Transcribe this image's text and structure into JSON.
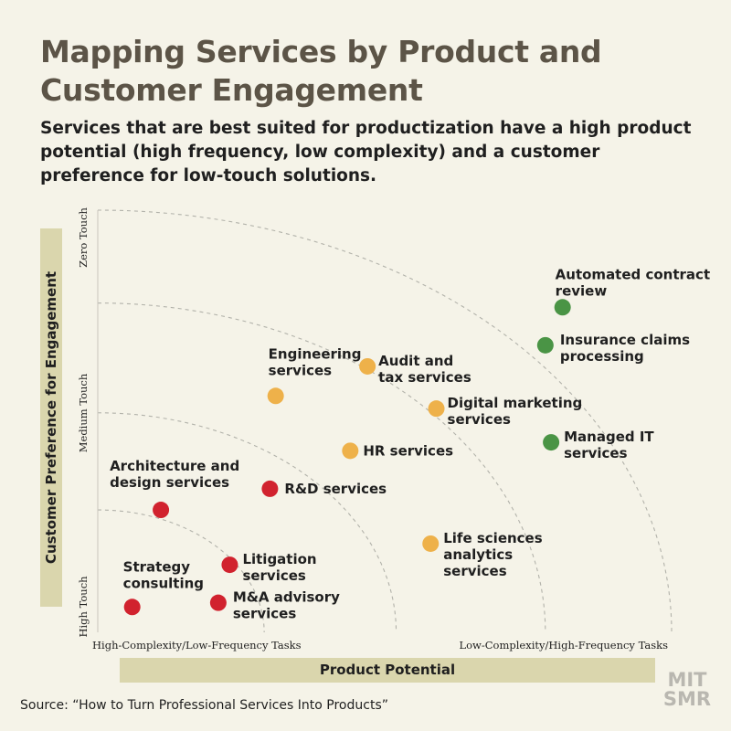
{
  "title": "Mapping Services by Product and Customer Engagement",
  "subtitle": "Services that are best suited for productization have a high product potential (high frequency, low complexity) and a customer preference for low-touch solutions.",
  "source": "Source: “How to Turn Professional Services Into Products”",
  "logo": {
    "line1": "MIT",
    "line2": "SMR"
  },
  "colors": {
    "background": "#f5f3e8",
    "label_bar": "#dad6ad",
    "title": "#5c5447",
    "red": "#d1222e",
    "yellow": "#eeb14a",
    "green": "#4a9445",
    "arc": "#b2b2aa"
  },
  "chart_data": {
    "type": "scatter",
    "title": "Mapping Services by Product and Customer Engagement",
    "xlabel": "Product Potential",
    "ylabel": "Customer Preference for Engagement",
    "x_ticks": [
      "High-Complexity/Low-Frequency Tasks",
      "Low-Complexity/High-Frequency Tasks"
    ],
    "y_ticks": [
      "High Touch",
      "Medium Touch",
      "Zero Touch"
    ],
    "xlim": [
      0,
      100
    ],
    "ylim": [
      0,
      100
    ],
    "grid": "concentric quarter-circle arcs",
    "arc_radii": [
      29,
      52,
      78,
      100
    ],
    "series": [
      {
        "color": "red",
        "points": [
          {
            "label": "Strategy consulting",
            "x": 6,
            "y": 6
          },
          {
            "label": "M&A advisory services",
            "x": 21,
            "y": 7
          },
          {
            "label": "Litigation services",
            "x": 23,
            "y": 16
          },
          {
            "label": "Architecture and design services",
            "x": 11,
            "y": 29
          },
          {
            "label": "R&D services",
            "x": 30,
            "y": 34
          }
        ]
      },
      {
        "color": "yellow",
        "points": [
          {
            "label": "Engineering services",
            "x": 31,
            "y": 56
          },
          {
            "label": "Audit and tax services",
            "x": 47,
            "y": 63
          },
          {
            "label": "Digital marketing services",
            "x": 59,
            "y": 53
          },
          {
            "label": "HR services",
            "x": 44,
            "y": 43
          },
          {
            "label": "Life sciences analytics services",
            "x": 58,
            "y": 21
          }
        ]
      },
      {
        "color": "green",
        "points": [
          {
            "label": "Automated contract review",
            "x": 81,
            "y": 77
          },
          {
            "label": "Insurance claims processing",
            "x": 78,
            "y": 68
          },
          {
            "label": "Managed IT services",
            "x": 79,
            "y": 45
          }
        ]
      }
    ]
  }
}
